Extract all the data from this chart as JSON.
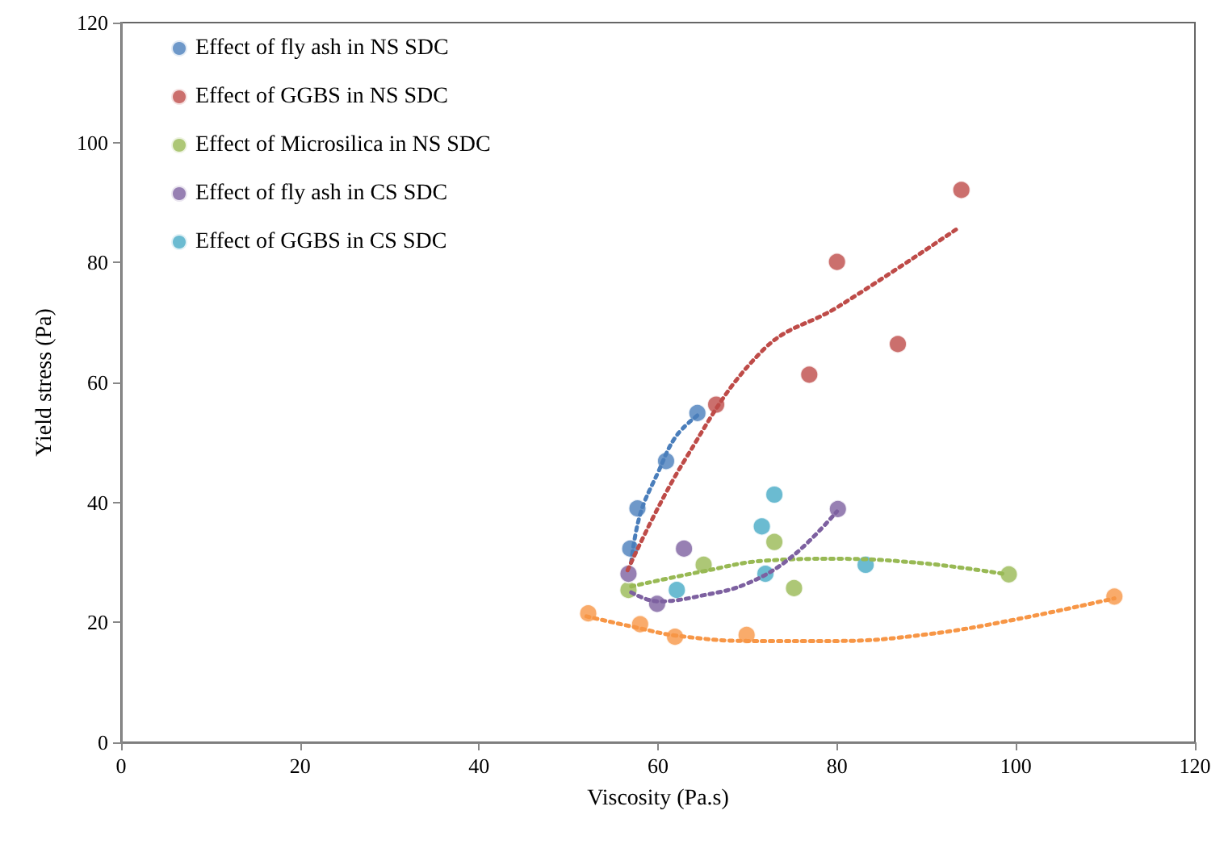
{
  "chart_data": {
    "type": "scatter",
    "xlabel": "Viscosity (Pa.s)",
    "ylabel": "Yield stress (Pa)",
    "xlim": [
      0,
      120
    ],
    "xticks": [
      0,
      20,
      40,
      60,
      80,
      100,
      120
    ],
    "ylim": [
      0,
      120
    ],
    "yticks": [
      0,
      20,
      40,
      60,
      80,
      100,
      120
    ],
    "grid": false,
    "legend": "top left",
    "marker": "circle",
    "series": [
      {
        "name": "Effect of fly ash in NS SDC",
        "color": "#4a7ebb",
        "x": [
          56.9,
          57.7,
          60.9,
          64.4
        ],
        "values": [
          32.3,
          39,
          46.9,
          54.9
        ]
      },
      {
        "name": "Effect of GGBS in NS SDC",
        "color": "#be4b48",
        "x": [
          66.5,
          76.9,
          80,
          86.8,
          93.9
        ],
        "values": [
          56.3,
          61.3,
          80.1,
          66.4,
          92.1
        ]
      },
      {
        "name": "Effect of Microsilica in NS SDC",
        "color": "#98b954",
        "x": [
          56.7,
          65.1,
          73,
          75.2,
          99.2
        ],
        "values": [
          25.4,
          29.6,
          33.4,
          25.7,
          28
        ]
      },
      {
        "name": "Effect of fly ash in CS SDC",
        "color": "#7d60a0",
        "x": [
          56.7,
          59.9,
          62.9,
          80.1
        ],
        "values": [
          28.1,
          23.1,
          32.3,
          38.9
        ]
      },
      {
        "name": "Effect of GGBS in CS SDC",
        "color": "#46aac5",
        "x": [
          62.1,
          71.6,
          73,
          72,
          83.2
        ],
        "values": [
          25.4,
          36,
          41.3,
          28.1,
          29.6
        ]
      },
      {
        "color": "#f79646",
        "x": [
          52.2,
          58,
          61.9,
          69.9,
          111
        ],
        "values": [
          21.5,
          19.7,
          17.6,
          17.9,
          24.3
        ]
      },
      {
        "type": "line",
        "line_style": "dotted",
        "marker": "none",
        "color": "#4a7ebb",
        "x": [
          57,
          58,
          60,
          62,
          64.4
        ],
        "values": [
          30,
          38,
          45,
          51,
          54.5
        ]
      },
      {
        "type": "line",
        "line_style": "dotted",
        "marker": "none",
        "color": "#be4b48",
        "x": [
          56.6,
          62.8,
          71.8,
          80.1,
          93.7
        ],
        "values": [
          28.7,
          46.6,
          65.5,
          72.6,
          85.9
        ]
      },
      {
        "type": "line",
        "line_style": "dotted",
        "marker": "none",
        "color": "#98b954",
        "x": [
          57,
          65,
          72,
          80,
          90,
          99
        ],
        "values": [
          26,
          28.5,
          30.3,
          30.6,
          29.8,
          28
        ]
      },
      {
        "type": "line",
        "line_style": "dotted",
        "marker": "none",
        "color": "#7d60a0",
        "x": [
          57,
          60,
          65,
          70,
          75,
          80
        ],
        "values": [
          25,
          23.5,
          24.5,
          26.5,
          31,
          38.5
        ]
      },
      {
        "type": "line",
        "line_style": "dotted",
        "marker": "none",
        "color": "#f79646",
        "x": [
          52,
          58,
          62,
          70,
          80,
          90,
          100,
          111
        ],
        "values": [
          21,
          19,
          17.8,
          16.9,
          16.9,
          18,
          20.5,
          24
        ]
      }
    ]
  }
}
